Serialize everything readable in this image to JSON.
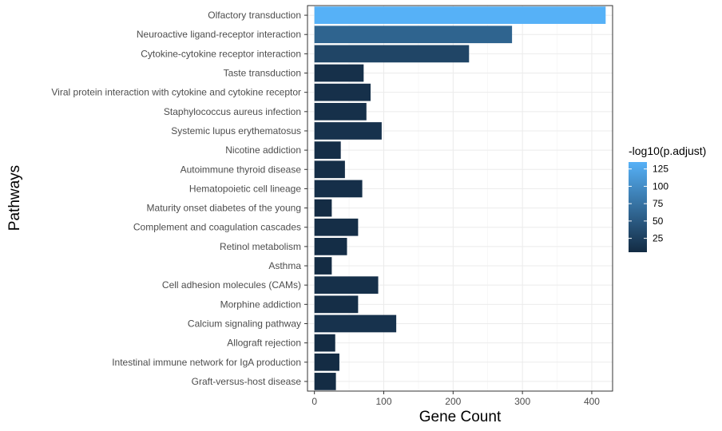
{
  "chart_data": {
    "type": "bar",
    "orientation": "horizontal",
    "xlabel": "Gene Count",
    "ylabel": "Pathways",
    "xlim": [
      -10,
      430
    ],
    "x_ticks": [
      0,
      100,
      200,
      300,
      400
    ],
    "grid": true,
    "categories": [
      "Olfactory transduction",
      "Neuroactive ligand-receptor interaction",
      "Cytokine-cytokine receptor interaction",
      "Taste transduction",
      "Viral protein interaction with cytokine and cytokine receptor",
      "Staphylococcus aureus infection",
      "Systemic lupus erythematosus",
      "Nicotine addiction",
      "Autoimmune thyroid disease",
      "Hematopoietic cell lineage",
      "Maturity onset diabetes of the young",
      "Complement and coagulation cascades",
      "Retinol metabolism",
      "Asthma",
      "Cell adhesion molecules (CAMs)",
      "Morphine addiction",
      "Calcium signaling pathway",
      "Allograft rejection",
      "Intestinal immune network for IgA production",
      "Graft-versus-host disease"
    ],
    "values": [
      420,
      285,
      223,
      71,
      81,
      75,
      97,
      38,
      44,
      69,
      25,
      63,
      47,
      25,
      92,
      63,
      118,
      30,
      36,
      31
    ],
    "color_values": [
      135,
      60,
      30,
      10,
      10,
      10,
      12,
      8,
      8,
      9,
      6,
      8,
      7,
      6,
      10,
      8,
      12,
      6,
      6,
      6
    ],
    "legend": {
      "title": "-log10(p.adjust)",
      "position": "right",
      "ticks": [
        25,
        50,
        75,
        100,
        125
      ],
      "range": [
        5,
        135
      ],
      "color_low": "#132B43",
      "color_high": "#56B1F7"
    }
  }
}
